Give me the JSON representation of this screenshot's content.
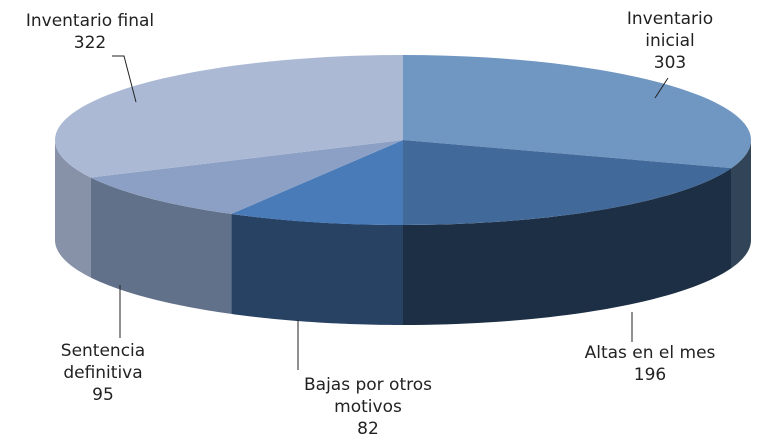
{
  "chart_data": {
    "type": "pie3d",
    "categories": [
      "Inventario inicial",
      "Altas en el mes",
      "Bajas por otros motivos",
      "Sentencia definitiva",
      "Inventario final"
    ],
    "values": [
      303,
      196,
      82,
      95,
      322
    ],
    "colors": [
      "#7096c2",
      "#41699a",
      "#4a7bb9",
      "#8ba0c4",
      "#abb9d5"
    ]
  }
}
